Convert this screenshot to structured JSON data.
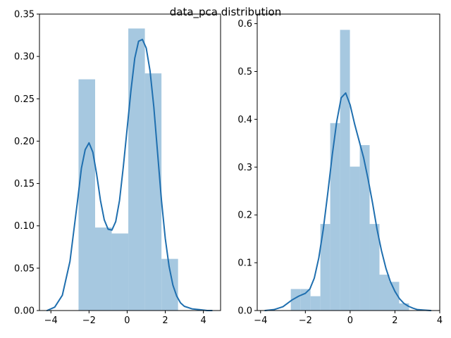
{
  "figure": {
    "suptitle": "data_pca distribution"
  },
  "chart_data": [
    {
      "type": "bar",
      "subtype": "histogram-with-kde",
      "title": "",
      "xlabel": "",
      "ylabel": "",
      "xlim": [
        -4.6,
        4.9
      ],
      "ylim": [
        0,
        0.35
      ],
      "xticks": [
        -4,
        -2,
        0,
        2,
        4
      ],
      "yticks": [
        0.0,
        0.05,
        0.1,
        0.15,
        0.2,
        0.25,
        0.3,
        0.35
      ],
      "ytick_labels": [
        "0.00",
        "0.05",
        "0.10",
        "0.15",
        "0.20",
        "0.25",
        "0.30",
        "0.35"
      ],
      "xtick_labels": [
        "−4",
        "−2",
        "0",
        "2",
        "4"
      ],
      "histogram": {
        "bin_edges": [
          -2.55,
          -1.68,
          -0.81,
          0.06,
          0.93,
          1.8,
          2.67
        ],
        "densities": [
          0.273,
          0.098,
          0.091,
          0.333,
          0.28,
          0.061
        ],
        "color": "#a6c8e0"
      },
      "kde": {
        "color": "#1f6faf",
        "x": [
          -4.2,
          -3.8,
          -3.4,
          -3.0,
          -2.6,
          -2.4,
          -2.2,
          -2.0,
          -1.8,
          -1.6,
          -1.4,
          -1.2,
          -1.0,
          -0.8,
          -0.6,
          -0.4,
          -0.2,
          0.0,
          0.2,
          0.4,
          0.6,
          0.8,
          1.0,
          1.2,
          1.4,
          1.6,
          1.8,
          2.0,
          2.2,
          2.4,
          2.6,
          2.8,
          3.0,
          3.4,
          3.8,
          4.2,
          4.45
        ],
        "y": [
          0.0,
          0.004,
          0.018,
          0.058,
          0.13,
          0.168,
          0.19,
          0.198,
          0.187,
          0.161,
          0.13,
          0.107,
          0.096,
          0.095,
          0.105,
          0.13,
          0.17,
          0.215,
          0.26,
          0.298,
          0.318,
          0.32,
          0.31,
          0.283,
          0.24,
          0.185,
          0.13,
          0.085,
          0.052,
          0.03,
          0.017,
          0.009,
          0.005,
          0.002,
          0.001,
          0.0,
          0.0
        ]
      }
    },
    {
      "type": "bar",
      "subtype": "histogram-with-kde",
      "title": "",
      "xlabel": "",
      "ylabel": "",
      "xlim": [
        -4.15,
        4.0
      ],
      "ylim": [
        0,
        0.62
      ],
      "xticks": [
        -4,
        -2,
        0,
        2,
        4
      ],
      "yticks": [
        0.0,
        0.1,
        0.2,
        0.3,
        0.4,
        0.5,
        0.6
      ],
      "ytick_labels": [
        "0.0",
        "0.1",
        "0.2",
        "0.3",
        "0.4",
        "0.5",
        "0.6"
      ],
      "xtick_labels": [
        "−4",
        "−2",
        "0",
        "2",
        "4"
      ],
      "histogram": {
        "bin_edges": [
          -2.65,
          -2.21,
          -1.77,
          -1.33,
          -0.89,
          -0.45,
          -0.01,
          0.43,
          0.87,
          1.31,
          1.75,
          2.19,
          2.63
        ],
        "densities": [
          0.045,
          0.045,
          0.03,
          0.181,
          0.392,
          0.587,
          0.301,
          0.346,
          0.181,
          0.075,
          0.06,
          0.015
        ],
        "color": "#a6c8e0"
      },
      "kde": {
        "color": "#1f6faf",
        "x": [
          -3.8,
          -3.4,
          -3.0,
          -2.6,
          -2.3,
          -2.0,
          -1.8,
          -1.6,
          -1.4,
          -1.2,
          -1.0,
          -0.8,
          -0.6,
          -0.4,
          -0.2,
          0.0,
          0.2,
          0.4,
          0.6,
          0.8,
          1.0,
          1.2,
          1.4,
          1.6,
          1.8,
          2.0,
          2.2,
          2.4,
          2.6,
          2.8,
          3.0,
          3.3,
          3.6
        ],
        "y": [
          0.0,
          0.002,
          0.008,
          0.022,
          0.03,
          0.036,
          0.045,
          0.068,
          0.11,
          0.17,
          0.245,
          0.325,
          0.395,
          0.445,
          0.455,
          0.43,
          0.39,
          0.355,
          0.32,
          0.275,
          0.225,
          0.17,
          0.125,
          0.088,
          0.06,
          0.04,
          0.025,
          0.015,
          0.009,
          0.005,
          0.002,
          0.001,
          0.0
        ]
      }
    }
  ]
}
